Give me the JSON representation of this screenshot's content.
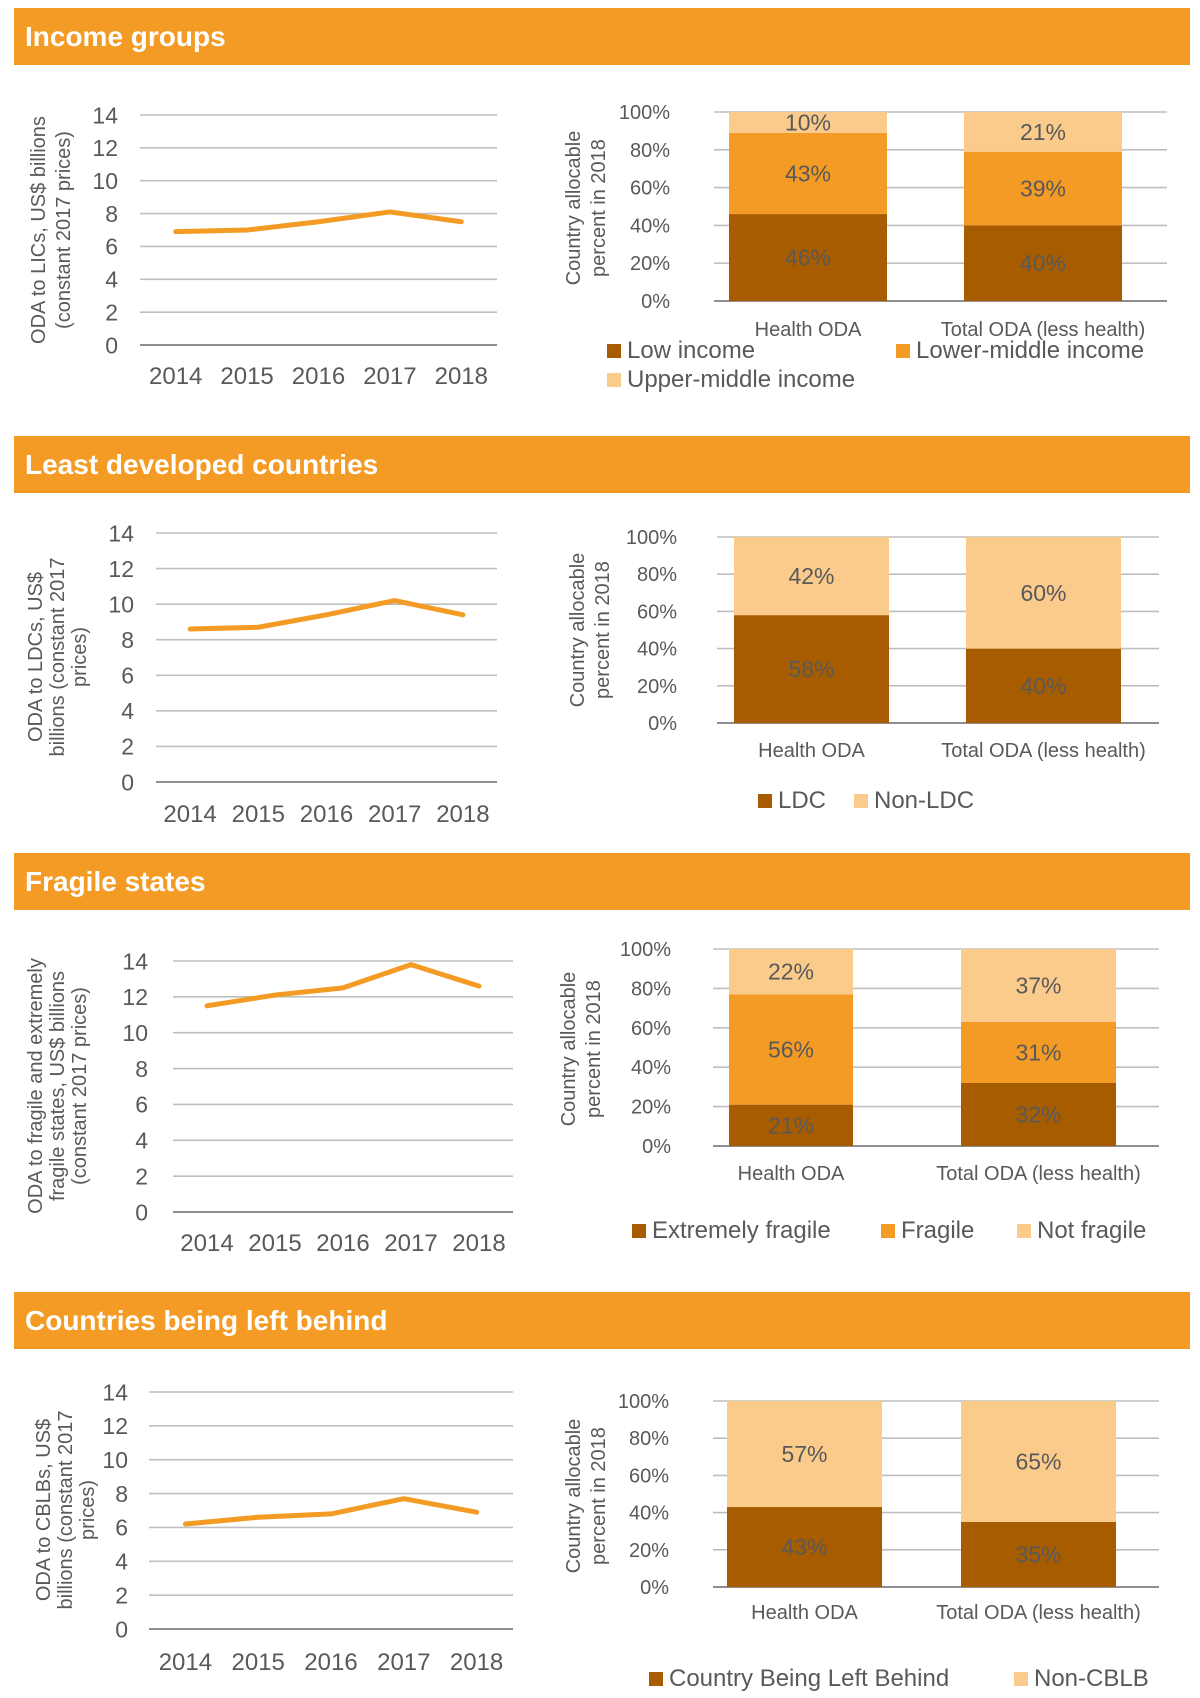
{
  "colors": {
    "banner": "#F39B24",
    "banner_text": "#FFFFFF",
    "line": "#F39B24",
    "dark": "#A85C00",
    "mid": "#F39B24",
    "light": "#FBCB8C",
    "gridline": "#BFBFBF",
    "axis_line": "#7F7F7F",
    "text": "#595959"
  },
  "sections": [
    {
      "title": "Income groups",
      "line_chart": {
        "ylabel_lines": [
          "ODA to LICs, US$ billions",
          "(constant 2017 prices)"
        ]
      },
      "bar_chart": {
        "ylabel_lines": [
          "Country allocable",
          "percent in 2018"
        ]
      }
    },
    {
      "title": "Least developed countries",
      "line_chart": {
        "ylabel_lines": [
          "ODA to LDCs, US$",
          "billions (constant 2017",
          "prices)"
        ]
      },
      "bar_chart": {
        "ylabel_lines": [
          "Country allocable",
          "percent in 2018"
        ]
      }
    },
    {
      "title": "Fragile states",
      "line_chart": {
        "ylabel_lines": [
          "ODA to fragile and extremely",
          "fragile states, US$ billions",
          "(constant 2017 prices)"
        ]
      },
      "bar_chart": {
        "ylabel_lines": [
          "Country allocable",
          "percent in 2018"
        ]
      }
    },
    {
      "title": "Countries being left behind",
      "line_chart": {
        "ylabel_lines": [
          "ODA to CBLBs, US$",
          "billions (constant 2017",
          "prices)"
        ]
      },
      "bar_chart": {
        "ylabel_lines": [
          "Country allocable",
          "percent in 2018"
        ]
      }
    }
  ],
  "chart_data": [
    {
      "type": "line",
      "x": [
        "2014",
        "2015",
        "2016",
        "2017",
        "2018"
      ],
      "series": [
        {
          "values": [
            6.9,
            7.0,
            7.5,
            8.1,
            7.5
          ]
        }
      ],
      "ylabel": "ODA to LICs, US$ billions (constant 2017 prices)",
      "ylim": [
        0,
        14
      ],
      "yticks": [
        "0",
        "2",
        "4",
        "6",
        "8",
        "10",
        "12",
        "14"
      ],
      "grid": true
    },
    {
      "type": "bar",
      "stacked": true,
      "categories": [
        "Health ODA",
        "Total ODA (less health)"
      ],
      "series": [
        {
          "name": "Low income",
          "values": [
            46,
            40
          ],
          "labels": [
            "46%",
            "40%"
          ],
          "color": "#A85C00"
        },
        {
          "name": "Lower-middle income",
          "values": [
            43,
            39
          ],
          "labels": [
            "43%",
            "39%"
          ],
          "color": "#F39B24"
        },
        {
          "name": "Upper-middle income",
          "values": [
            10,
            21
          ],
          "labels": [
            "10%",
            "21%"
          ],
          "color": "#FBCB8C"
        }
      ],
      "ylabel": "Country allocable percent in 2018",
      "ylim": [
        0,
        100
      ],
      "yticks": [
        "0%",
        "20%",
        "40%",
        "60%",
        "80%",
        "100%"
      ],
      "legend_position": "bottom",
      "grid": true
    },
    {
      "type": "line",
      "x": [
        "2014",
        "2015",
        "2016",
        "2017",
        "2018"
      ],
      "series": [
        {
          "values": [
            8.6,
            8.7,
            9.4,
            10.2,
            9.4
          ]
        }
      ],
      "ylabel": "ODA to LDCs, US$ billions (constant 2017 prices)",
      "ylim": [
        0,
        14
      ],
      "yticks": [
        "0",
        "2",
        "4",
        "6",
        "8",
        "10",
        "12",
        "14"
      ],
      "grid": true
    },
    {
      "type": "bar",
      "stacked": true,
      "categories": [
        "Health ODA",
        "Total ODA (less health)"
      ],
      "series": [
        {
          "name": "LDC",
          "values": [
            58,
            40
          ],
          "labels": [
            "58%",
            "40%"
          ],
          "color": "#A85C00"
        },
        {
          "name": "Non-LDC",
          "values": [
            42,
            60
          ],
          "labels": [
            "42%",
            "60%"
          ],
          "color": "#FBCB8C"
        }
      ],
      "ylabel": "Country allocable percent in 2018",
      "ylim": [
        0,
        100
      ],
      "yticks": [
        "0%",
        "20%",
        "40%",
        "60%",
        "80%",
        "100%"
      ],
      "legend_position": "bottom",
      "grid": true
    },
    {
      "type": "line",
      "x": [
        "2014",
        "2015",
        "2016",
        "2017",
        "2018"
      ],
      "series": [
        {
          "values": [
            11.5,
            12.1,
            12.5,
            13.8,
            12.6
          ]
        }
      ],
      "ylabel": "ODA to fragile and extremely fragile states, US$ billions (constant 2017 prices)",
      "ylim": [
        0,
        14
      ],
      "yticks": [
        "0",
        "2",
        "4",
        "6",
        "8",
        "10",
        "12",
        "14"
      ],
      "grid": true
    },
    {
      "type": "bar",
      "stacked": true,
      "categories": [
        "Health ODA",
        "Total ODA (less health)"
      ],
      "series": [
        {
          "name": "Extremely fragile",
          "values": [
            21,
            32
          ],
          "labels": [
            "21%",
            "32%"
          ],
          "color": "#A85C00"
        },
        {
          "name": "Fragile",
          "values": [
            56,
            31
          ],
          "labels": [
            "56%",
            "31%"
          ],
          "color": "#F39B24"
        },
        {
          "name": "Not fragile",
          "values": [
            22,
            37
          ],
          "labels": [
            "22%",
            "37%"
          ],
          "color": "#FBCB8C"
        }
      ],
      "ylabel": "Country allocable percent in 2018",
      "ylim": [
        0,
        100
      ],
      "yticks": [
        "0%",
        "20%",
        "40%",
        "60%",
        "80%",
        "100%"
      ],
      "legend_position": "bottom",
      "grid": true
    },
    {
      "type": "line",
      "x": [
        "2014",
        "2015",
        "2016",
        "2017",
        "2018"
      ],
      "series": [
        {
          "values": [
            6.2,
            6.6,
            6.8,
            7.7,
            6.9
          ]
        }
      ],
      "ylabel": "ODA to CBLBs, US$ billions (constant 2017 prices)",
      "ylim": [
        0,
        14
      ],
      "yticks": [
        "0",
        "2",
        "4",
        "6",
        "8",
        "10",
        "12",
        "14"
      ],
      "grid": true
    },
    {
      "type": "bar",
      "stacked": true,
      "categories": [
        "Health ODA",
        "Total ODA (less health)"
      ],
      "series": [
        {
          "name": "Country Being Left Behind",
          "values": [
            43,
            35
          ],
          "labels": [
            "43%",
            "35%"
          ],
          "color": "#A85C00"
        },
        {
          "name": "Non-CBLB",
          "values": [
            57,
            65
          ],
          "labels": [
            "57%",
            "65%"
          ],
          "color": "#FBCB8C"
        }
      ],
      "ylabel": "Country allocable percent in 2018",
      "ylim": [
        0,
        100
      ],
      "yticks": [
        "0%",
        "20%",
        "40%",
        "60%",
        "80%",
        "100%"
      ],
      "legend_position": "bottom",
      "grid": true
    }
  ]
}
